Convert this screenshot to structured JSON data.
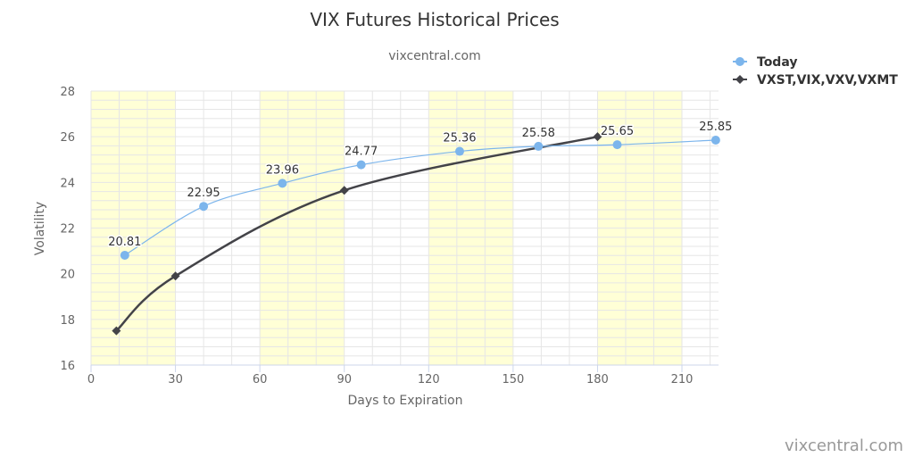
{
  "chart_data": {
    "type": "line",
    "title": "VIX Futures Historical Prices",
    "subtitle": "vixcentral.com",
    "xlabel": "Days to Expiration",
    "ylabel": "Volatility",
    "xlim": [
      0,
      223
    ],
    "ylim": [
      16,
      28
    ],
    "xticks": [
      0,
      30,
      60,
      90,
      120,
      150,
      180,
      210
    ],
    "yticks": [
      16,
      18,
      20,
      22,
      24,
      26,
      28
    ],
    "grid": true,
    "legend_position": "top-right",
    "shaded_bands": [
      [
        0,
        30
      ],
      [
        60,
        90
      ],
      [
        120,
        150
      ],
      [
        180,
        210
      ]
    ],
    "series": [
      {
        "name": "Today",
        "color": "#7cb5ec",
        "marker": "circle",
        "data_labels": true,
        "x": [
          12,
          40,
          68,
          96,
          131,
          159,
          187,
          222
        ],
        "y": [
          20.81,
          22.95,
          23.96,
          24.77,
          25.36,
          25.58,
          25.65,
          25.85
        ]
      },
      {
        "name": "VXST,VIX,VXV,VXMT",
        "color": "#434348",
        "marker": "diamond",
        "data_labels": false,
        "x": [
          9,
          30,
          90,
          180
        ],
        "y": [
          17.5,
          19.9,
          23.65,
          26.0
        ]
      }
    ]
  },
  "credit": "vixcentral.com",
  "colors": {
    "band": "#ffffd6",
    "grid": "#e6e6e6",
    "axis": "#ccd6eb"
  }
}
